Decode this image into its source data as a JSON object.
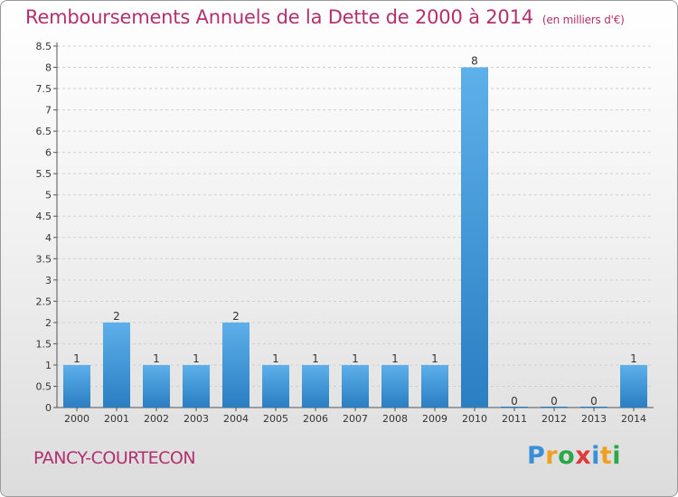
{
  "title": "Remboursements Annuels de la Dette de 2000 à 2014",
  "title_unit": "(en milliers d'€)",
  "commune": "PANCY-COURTECON",
  "logo": {
    "letters": [
      "P",
      "r",
      "o",
      "x",
      "i",
      "t",
      "i"
    ],
    "colors": [
      "#3b8fd8",
      "#f0a020",
      "#2aa84a",
      "#e03a3a",
      "#3b8fd8",
      "#f0a020",
      "#2aa84a"
    ]
  },
  "colors": {
    "bar_light": "#5db0ea",
    "bar_dark": "#2a7ec2",
    "title": "#b2306e"
  },
  "chart_data": {
    "type": "bar",
    "categories": [
      "2000",
      "2001",
      "2002",
      "2003",
      "2004",
      "2005",
      "2006",
      "2007",
      "2008",
      "2009",
      "2010",
      "2011",
      "2012",
      "2013",
      "2014"
    ],
    "values": [
      1,
      2,
      1,
      1,
      2,
      1,
      1,
      1,
      1,
      1,
      8,
      0,
      0,
      0,
      1
    ],
    "data_labels": [
      "1",
      "2",
      "1",
      "1",
      "2",
      "1",
      "1",
      "1",
      "1",
      "1",
      "8",
      "0",
      "0",
      "0",
      "1"
    ],
    "yticks": [
      0,
      0.5,
      1,
      1.5,
      2,
      2.5,
      3,
      3.5,
      4,
      4.5,
      5,
      5.5,
      6,
      6.5,
      7,
      7.5,
      8,
      8.5
    ],
    "ylim": [
      0,
      8.5
    ],
    "grid": true,
    "title": "Remboursements Annuels de la Dette de 2000 à 2014",
    "xlabel": "",
    "ylabel": ""
  }
}
